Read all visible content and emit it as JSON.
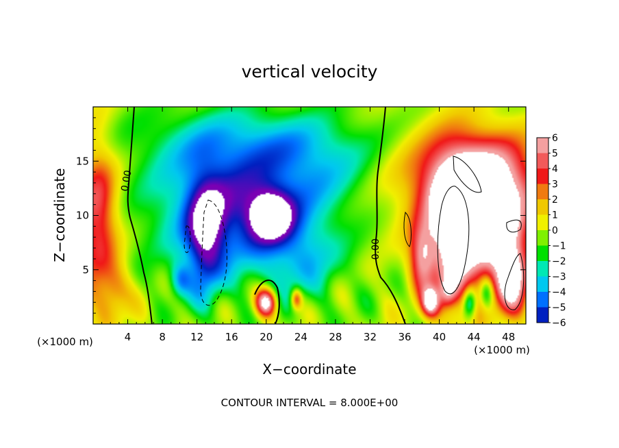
{
  "chart_data": {
    "type": "heatmap",
    "title": "vertical velocity",
    "xlabel": "X−coordinate",
    "ylabel": "Z−coordinate",
    "x_unit_label": "(×1000 m)",
    "footer": "CONTOUR INTERVAL = 8.000E+00",
    "xlim": [
      0,
      50
    ],
    "ylim": [
      0,
      20
    ],
    "x_ticks": [
      4,
      8,
      12,
      16,
      20,
      24,
      28,
      32,
      36,
      40,
      44,
      48
    ],
    "y_ticks": [
      5,
      10,
      15
    ],
    "colorbar": {
      "values": [
        6,
        5,
        4,
        3,
        2,
        1,
        0,
        -1,
        -2,
        -3,
        -4,
        -5,
        -6
      ],
      "labels": [
        "6",
        "5",
        "4",
        "3",
        "2",
        "1",
        "0",
        "−1",
        "−2",
        "−3",
        "−4",
        "−5",
        "−6"
      ],
      "colors": [
        "#f4a0a0",
        "#f25a5a",
        "#f01818",
        "#f07a10",
        "#f0c800",
        "#f0f000",
        "#7ff000",
        "#00e000",
        "#00e8b4",
        "#00c8f0",
        "#0070ff",
        "#0020c0",
        "#7a00b4"
      ]
    },
    "contour_labels": [
      {
        "text": "0.00",
        "x": 3.8,
        "y": 13.2,
        "angle": -80
      },
      {
        "text": "0.00",
        "x": 32.6,
        "y": 6.9,
        "angle": -90
      }
    ],
    "features": [
      {
        "type": "updraft",
        "x": 1.5,
        "y": 9,
        "peak": 4.5
      },
      {
        "type": "downdraft",
        "x": 13,
        "y": 7.5,
        "peak": -8
      },
      {
        "type": "downdraft",
        "x": 20.5,
        "y": 10,
        "peak": -8
      },
      {
        "type": "updraft",
        "x": 20,
        "y": 2,
        "peak": 7
      },
      {
        "type": "updraft",
        "x": 42.5,
        "y": 10,
        "peak": 10
      },
      {
        "type": "updraft",
        "x": 48,
        "y": 6,
        "peak": 8
      }
    ]
  }
}
